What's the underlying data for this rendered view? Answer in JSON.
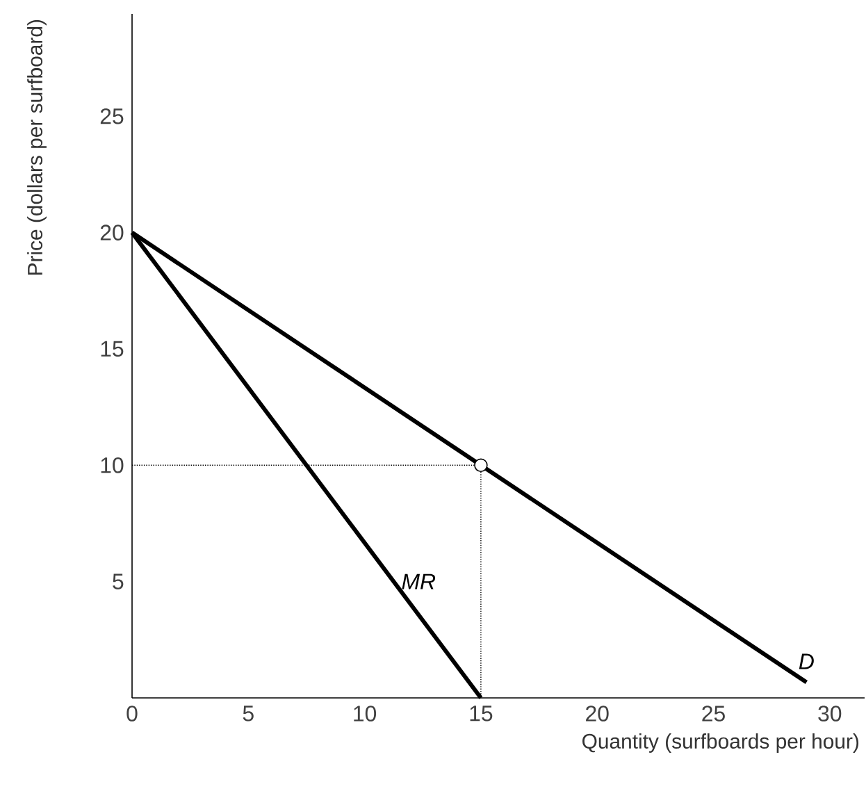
{
  "chart_data": {
    "type": "line",
    "xlabel": "Quantity (surfboards per hour)",
    "ylabel": "Price (dollars per surfboard)",
    "xlim": [
      0,
      31.5
    ],
    "ylim": [
      0,
      29.4
    ],
    "xticks": [
      0,
      5,
      10,
      15,
      20,
      25,
      30
    ],
    "yticks": [
      5,
      10,
      15,
      20,
      25
    ],
    "series": [
      {
        "name": "D",
        "color": "#000000",
        "x": [
          0,
          29
        ],
        "values": [
          20,
          0.67
        ]
      },
      {
        "name": "MR",
        "color": "#000000",
        "x": [
          0,
          15
        ],
        "values": [
          20,
          0
        ]
      },
      {
        "color": "#000000",
        "x": [
          0,
          15,
          15
        ],
        "values": [
          10,
          10,
          0
        ],
        "line_style": "dotted"
      },
      {
        "type": "scatter",
        "color": "#000000",
        "x": [
          15
        ],
        "values": [
          10
        ],
        "marker": "circle"
      }
    ]
  }
}
